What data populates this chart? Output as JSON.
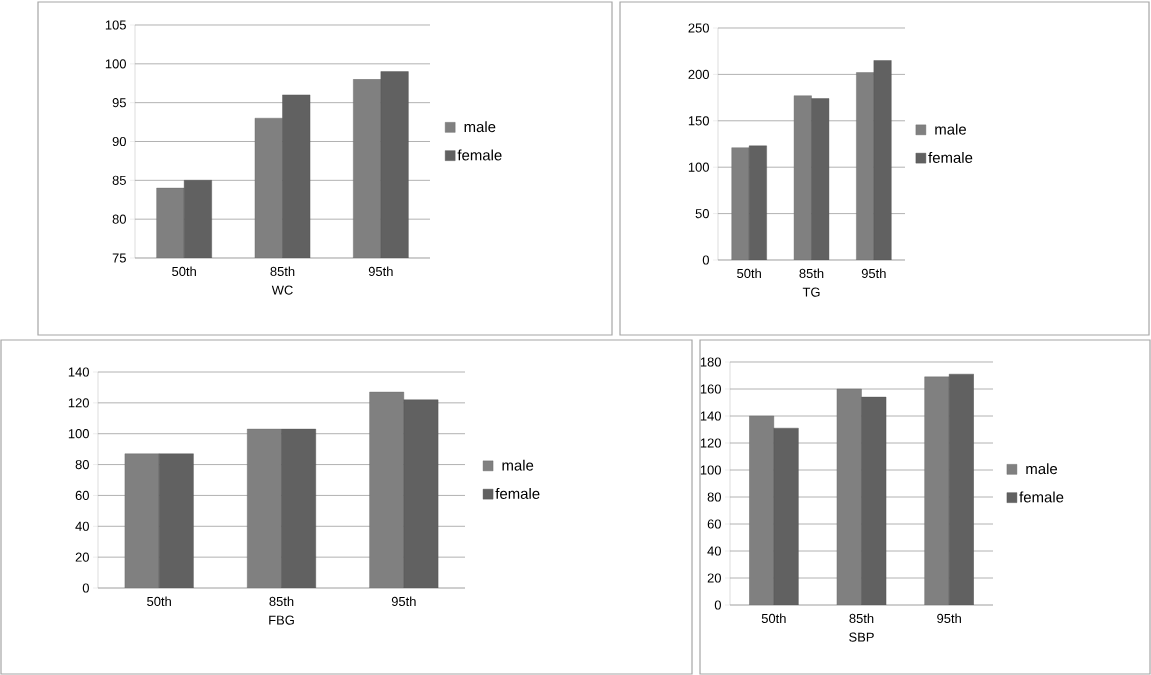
{
  "chart_data": [
    {
      "type": "bar",
      "categories": [
        "50th",
        "85th",
        "95th"
      ],
      "xlabel": "WC",
      "ylim": [
        75,
        105
      ],
      "yticks": [
        75,
        80,
        85,
        90,
        95,
        100,
        105
      ],
      "grid": "y",
      "legend": "right",
      "series": [
        {
          "name": "male",
          "color": "#808080",
          "values": [
            84,
            93,
            98
          ]
        },
        {
          "name": "female",
          "color": "#616161",
          "values": [
            85,
            96,
            99
          ]
        }
      ]
    },
    {
      "type": "bar",
      "categories": [
        "50th",
        "85th",
        "95th"
      ],
      "xlabel": "TG",
      "ylim": [
        0,
        250
      ],
      "yticks": [
        0,
        50,
        100,
        150,
        200,
        250
      ],
      "grid": "y",
      "legend": "right",
      "series": [
        {
          "name": "male",
          "color": "#808080",
          "values": [
            121,
            177,
            202
          ]
        },
        {
          "name": "female",
          "color": "#616161",
          "values": [
            123,
            174,
            215
          ]
        }
      ]
    },
    {
      "type": "bar",
      "categories": [
        "50th",
        "85th",
        "95th"
      ],
      "xlabel": "FBG",
      "ylim": [
        0,
        140
      ],
      "yticks": [
        0,
        20,
        40,
        60,
        80,
        100,
        120,
        140
      ],
      "grid": "y",
      "legend": "right",
      "series": [
        {
          "name": "male",
          "color": "#808080",
          "values": [
            87,
            103,
            127
          ]
        },
        {
          "name": "female",
          "color": "#616161",
          "values": [
            87,
            103,
            122
          ]
        }
      ]
    },
    {
      "type": "bar",
      "categories": [
        "50th",
        "85th",
        "95th"
      ],
      "xlabel": "SBP",
      "ylim": [
        0,
        180
      ],
      "yticks": [
        0,
        20,
        40,
        60,
        80,
        100,
        120,
        140,
        160,
        180
      ],
      "grid": "y",
      "legend": "right",
      "series": [
        {
          "name": "male",
          "color": "#808080",
          "values": [
            140,
            160,
            169
          ]
        },
        {
          "name": "female",
          "color": "#616161",
          "values": [
            131,
            154,
            171
          ]
        }
      ]
    }
  ]
}
